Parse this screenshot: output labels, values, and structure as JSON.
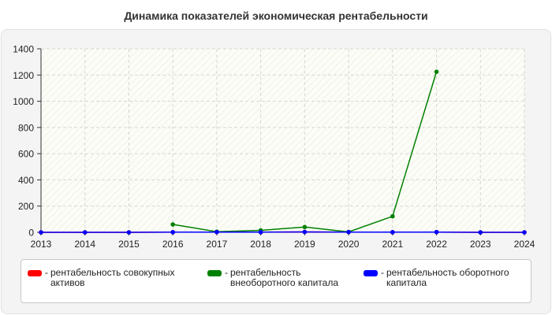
{
  "chart_data": {
    "type": "line",
    "title": "Динамика показателей экономическая рентабельности",
    "xlabel": "",
    "ylabel": "",
    "x": [
      "2013",
      "2014",
      "2015",
      "2016",
      "2017",
      "2018",
      "2019",
      "2020",
      "2021",
      "2022",
      "2023",
      "2024"
    ],
    "ylim": [
      0,
      1400
    ],
    "yticks": [
      0,
      200,
      400,
      600,
      800,
      1000,
      1200,
      1400
    ],
    "grid": true,
    "legend_position": "bottom",
    "series": [
      {
        "name": "рентабельность совокупных активов",
        "color": "#ff0000",
        "values": [
          0,
          0,
          0,
          1,
          2,
          1,
          3,
          2,
          1,
          2,
          0,
          0
        ]
      },
      {
        "name": "рентабельность внеоборотного капитала",
        "color": "#008000",
        "values": [
          null,
          null,
          null,
          60,
          5,
          15,
          40,
          3,
          122,
          1225,
          null,
          null
        ]
      },
      {
        "name": "рентабельность оборотного капитала",
        "color": "#0000ff",
        "values": [
          0,
          0,
          0,
          1,
          2,
          1,
          3,
          2,
          1,
          2,
          0,
          0
        ]
      }
    ]
  },
  "legend": {
    "dash": "-"
  }
}
